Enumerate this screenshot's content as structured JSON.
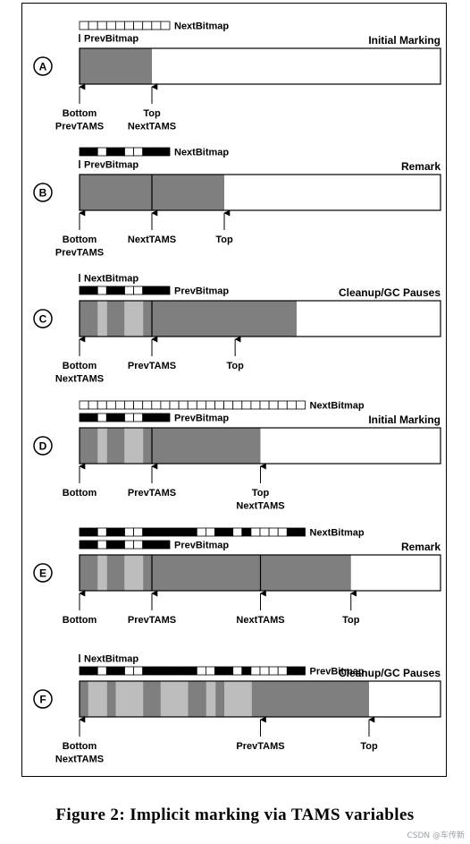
{
  "caption": "Figure 2: Implicit marking via TAMS variables",
  "watermark": "CSDN @车传新",
  "colors": {
    "marked": "#7f7f7f",
    "live": "#bdbdbd",
    "empty": "#ffffff",
    "ink": "#000000"
  },
  "panels": [
    {
      "letter": "A",
      "title": "Initial Marking",
      "fill_segments": [
        {
          "shade": "marked",
          "from": 0,
          "to": 1
        }
      ],
      "dividers": [],
      "bitmaps": [
        {
          "label": "NextBitmap",
          "row": "top",
          "cells": "0000000000",
          "label_side": "right"
        },
        {
          "label": "PrevBitmap",
          "row": "mid",
          "cells": "",
          "label_side": "marker"
        }
      ],
      "pointers": [
        {
          "at": 0,
          "lines": [
            "Bottom",
            "PrevTAMS"
          ]
        },
        {
          "at": 1,
          "lines": [
            "Top",
            "NextTAMS"
          ]
        }
      ]
    },
    {
      "letter": "B",
      "title": "Remark",
      "fill_segments": [
        {
          "shade": "marked",
          "from": 0,
          "to": 2
        }
      ],
      "dividers": [
        1
      ],
      "bitmaps": [
        {
          "label": "NextBitmap",
          "row": "top",
          "cells": "1101100111",
          "label_side": "right"
        },
        {
          "label": "PrevBitmap",
          "row": "mid",
          "cells": "",
          "label_side": "marker"
        }
      ],
      "pointers": [
        {
          "at": 0,
          "lines": [
            "Bottom",
            "PrevTAMS"
          ]
        },
        {
          "at": 1,
          "lines": [
            "NextTAMS"
          ]
        },
        {
          "at": 2,
          "lines": [
            "Top"
          ]
        }
      ]
    },
    {
      "letter": "C",
      "title": "Cleanup/GC Pauses",
      "fill_segments": [
        {
          "shade": "marked",
          "from": 0,
          "to": 3
        },
        {
          "shade": "live",
          "from": 0.25,
          "to": 0.38
        },
        {
          "shade": "live",
          "from": 0.62,
          "to": 0.88
        }
      ],
      "dividers": [
        1
      ],
      "bitmaps": [
        {
          "label": "NextBitmap",
          "row": "top",
          "cells": "",
          "label_side": "marker"
        },
        {
          "label": "PrevBitmap",
          "row": "mid",
          "cells": "1101100111",
          "label_side": "right"
        }
      ],
      "pointers": [
        {
          "at": 0,
          "lines": [
            "Bottom",
            "NextTAMS"
          ]
        },
        {
          "at": 1,
          "lines": [
            "PrevTAMS"
          ]
        },
        {
          "at": 2.15,
          "lines": [
            "Top"
          ]
        }
      ]
    },
    {
      "letter": "D",
      "title": "Initial Marking",
      "fill_segments": [
        {
          "shade": "marked",
          "from": 0,
          "to": 2.5
        },
        {
          "shade": "live",
          "from": 0.25,
          "to": 0.38
        },
        {
          "shade": "live",
          "from": 0.62,
          "to": 0.88
        }
      ],
      "dividers": [
        1
      ],
      "bitmaps": [
        {
          "label": "NextBitmap",
          "row": "top",
          "cells": "0000000000000000000000000",
          "label_side": "right"
        },
        {
          "label": "PrevBitmap",
          "row": "mid",
          "cells": "1101100111",
          "label_side": "right"
        }
      ],
      "pointers": [
        {
          "at": 0,
          "lines": [
            "Bottom"
          ]
        },
        {
          "at": 1,
          "lines": [
            "PrevTAMS"
          ]
        },
        {
          "at": 2.5,
          "lines": [
            "Top",
            "NextTAMS"
          ]
        }
      ]
    },
    {
      "letter": "E",
      "title": "Remark",
      "fill_segments": [
        {
          "shade": "marked",
          "from": 0,
          "to": 3.75
        },
        {
          "shade": "live",
          "from": 0.25,
          "to": 0.38
        },
        {
          "shade": "live",
          "from": 0.62,
          "to": 0.88
        }
      ],
      "dividers": [
        1,
        2.5
      ],
      "bitmaps": [
        {
          "label": "NextBitmap",
          "row": "top",
          "cells": "1101100111111001101000011",
          "label_side": "right"
        },
        {
          "label": "PrevBitmap",
          "row": "mid",
          "cells": "1101100111",
          "label_side": "right"
        }
      ],
      "pointers": [
        {
          "at": 0,
          "lines": [
            "Bottom"
          ]
        },
        {
          "at": 1,
          "lines": [
            "PrevTAMS"
          ]
        },
        {
          "at": 2.5,
          "lines": [
            "NextTAMS"
          ]
        },
        {
          "at": 3.75,
          "lines": [
            "Top"
          ]
        }
      ]
    },
    {
      "letter": "F",
      "title": "Cleanup/GC Pauses",
      "fill_segments": [
        {
          "shade": "marked",
          "from": 0,
          "to": 4
        },
        {
          "shade": "live",
          "from": 0.12,
          "to": 0.38
        },
        {
          "shade": "live",
          "from": 0.5,
          "to": 0.88
        },
        {
          "shade": "live",
          "from": 1.12,
          "to": 1.5
        },
        {
          "shade": "live",
          "from": 1.75,
          "to": 1.88
        },
        {
          "shade": "live",
          "from": 2.0,
          "to": 2.38
        }
      ],
      "dividers": [],
      "bitmaps": [
        {
          "label": "NextBitmap",
          "row": "top",
          "cells": "",
          "label_side": "marker"
        },
        {
          "label": "PrevBitmap",
          "row": "mid",
          "cells": "1101100111111001101000011",
          "label_side": "right"
        }
      ],
      "pointers": [
        {
          "at": 0,
          "lines": [
            "Bottom",
            "NextTAMS"
          ]
        },
        {
          "at": 2.5,
          "lines": [
            "PrevTAMS"
          ]
        },
        {
          "at": 4,
          "lines": [
            "Top"
          ]
        }
      ]
    }
  ]
}
